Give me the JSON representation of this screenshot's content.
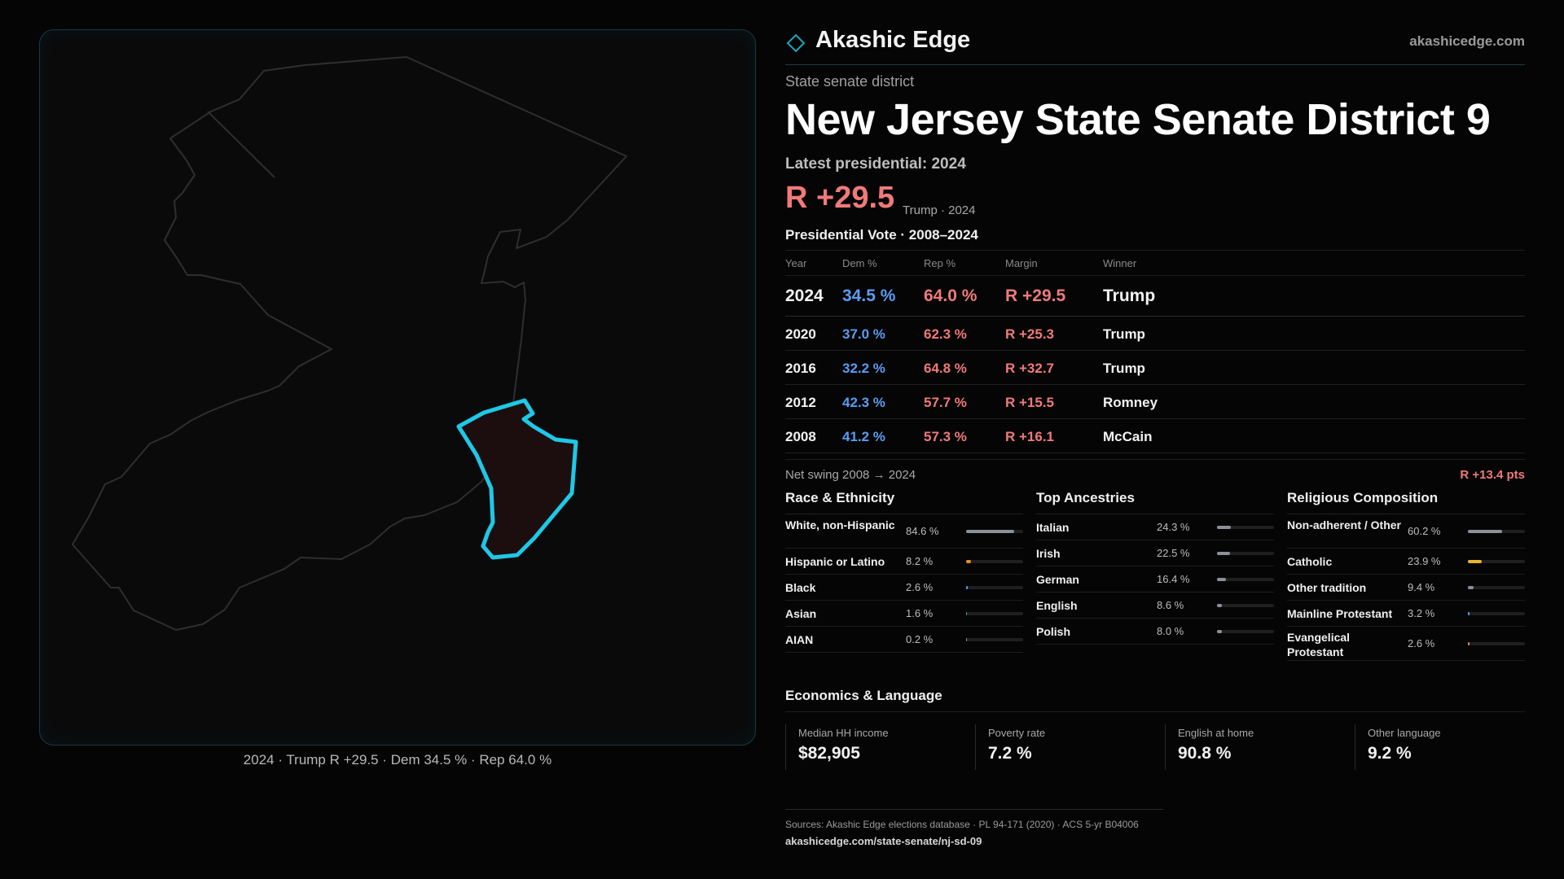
{
  "map": {
    "caption": "2024 · Trump R +29.5 · Dem 34.5 % · Rep 64.0 %",
    "state_outline_color": "#2e2e2e",
    "district_stroke_color": "#1ec8e6",
    "district_fill_color": "#1c0e0f"
  },
  "header": {
    "brand": "Akashic Edge",
    "site": "akashicedge.com",
    "logo_icon": "diamond-icon",
    "accent": "#1aa7bf"
  },
  "district": {
    "kicker": "State senate district",
    "title": "New Jersey State Senate District 9",
    "latest_label": "Latest presidential: 2024",
    "margin": "R +29.5",
    "margin_sub": "Trump · 2024"
  },
  "presidential": {
    "title": "Presidential Vote · 2008–2024",
    "columns": [
      "Year",
      "Dem %",
      "Rep %",
      "Margin",
      "Winner"
    ],
    "rows": [
      {
        "year": "2024",
        "dem": "34.5 %",
        "rep": "64.0 %",
        "margin": "R +29.5",
        "winner": "Trump"
      },
      {
        "year": "2020",
        "dem": "37.0 %",
        "rep": "62.3 %",
        "margin": "R +25.3",
        "winner": "Trump"
      },
      {
        "year": "2016",
        "dem": "32.2 %",
        "rep": "64.8 %",
        "margin": "R +32.7",
        "winner": "Trump"
      },
      {
        "year": "2012",
        "dem": "42.3 %",
        "rep": "57.7 %",
        "margin": "R +15.5",
        "winner": "Romney"
      },
      {
        "year": "2008",
        "dem": "41.2 %",
        "rep": "57.3 %",
        "margin": "R +16.1",
        "winner": "McCain"
      }
    ],
    "swing_label": "Net swing 2008 → 2024",
    "swing_value": "R +13.4 pts",
    "dem_color": "#5b9cf2",
    "rep_color": "#ef7a7a"
  },
  "race": {
    "title": "Race & Ethnicity",
    "items": [
      {
        "label": "White, non-Hispanic",
        "value": "84.6 %",
        "pct": 84.6,
        "color": "#8b9099"
      },
      {
        "label": "Hispanic or Latino",
        "value": "8.2 %",
        "pct": 8.2,
        "color": "#e0912c"
      },
      {
        "label": "Black",
        "value": "2.6 %",
        "pct": 2.6,
        "color": "#5b9cf2"
      },
      {
        "label": "Asian",
        "value": "1.6 %",
        "pct": 1.6,
        "color": "#3fa97a"
      },
      {
        "label": "AIAN",
        "value": "0.2 %",
        "pct": 0.2,
        "color": "#8b9099"
      }
    ]
  },
  "ancestry": {
    "title": "Top Ancestries",
    "items": [
      {
        "label": "Italian",
        "value": "24.3 %",
        "pct": 24.3,
        "color": "#8b9099"
      },
      {
        "label": "Irish",
        "value": "22.5 %",
        "pct": 22.5,
        "color": "#8b9099"
      },
      {
        "label": "German",
        "value": "16.4 %",
        "pct": 16.4,
        "color": "#8b9099"
      },
      {
        "label": "English",
        "value": "8.6 %",
        "pct": 8.6,
        "color": "#8b9099"
      },
      {
        "label": "Polish",
        "value": "8.0 %",
        "pct": 8.0,
        "color": "#8b9099"
      }
    ]
  },
  "religion": {
    "title": "Religious Composition",
    "items": [
      {
        "label": "Non-adherent / Other",
        "value": "60.2 %",
        "pct": 60.2,
        "color": "#8b9099"
      },
      {
        "label": "Catholic",
        "value": "23.9 %",
        "pct": 23.9,
        "color": "#e6b530"
      },
      {
        "label": "Other tradition",
        "value": "9.4 %",
        "pct": 9.4,
        "color": "#8b9099"
      },
      {
        "label": "Mainline Protestant",
        "value": "3.2 %",
        "pct": 3.2,
        "color": "#5b9cf2"
      },
      {
        "label": "Evangelical Protestant",
        "value": "2.6 %",
        "pct": 2.6,
        "color": "#ef7a7a"
      }
    ]
  },
  "economics": {
    "title": "Economics & Language",
    "items": [
      {
        "label": "Median HH income",
        "value": "$82,905"
      },
      {
        "label": "Poverty rate",
        "value": "7.2 %"
      },
      {
        "label": "English at home",
        "value": "90.8 %"
      },
      {
        "label": "Other language",
        "value": "9.2 %"
      }
    ]
  },
  "footer": {
    "sources": "Sources: Akashic Edge elections database · PL 94-171 (2020) · ACS 5-yr B04006",
    "url": "akashicedge.com/state-senate/nj-sd-09"
  }
}
